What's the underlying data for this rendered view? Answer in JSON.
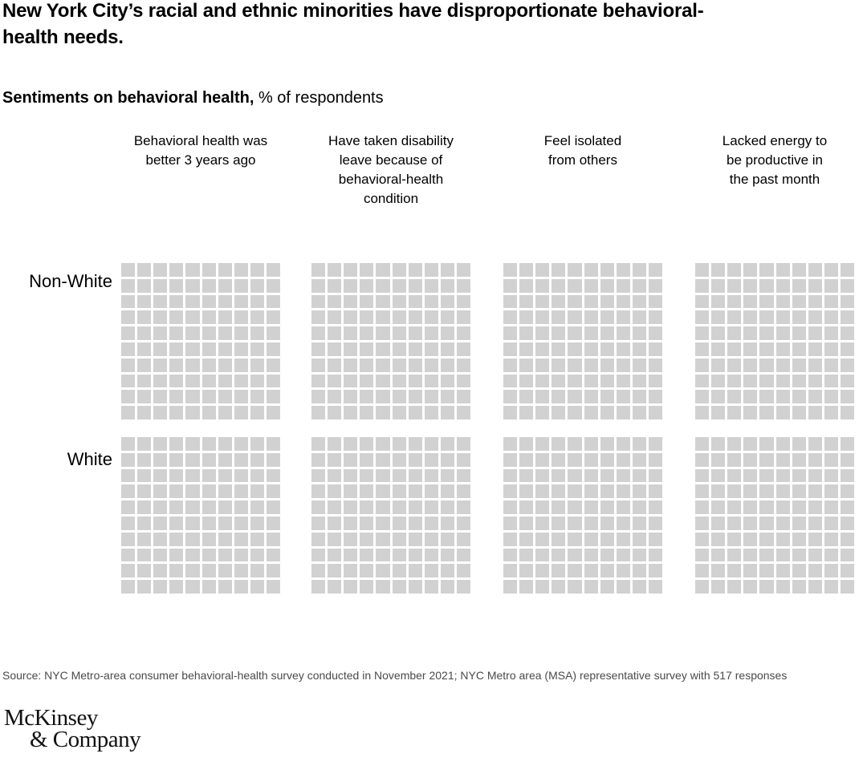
{
  "title": "New York City’s racial and ethnic minorities have disproportionate behavioral-\nhealth needs.",
  "subtitle": {
    "bold": "Sentiments on behavioral health,",
    "regular": " % of respondents"
  },
  "chart_data": {
    "type": "waffle",
    "title": "Sentiments on behavioral health, % of respondents",
    "rows": [
      "Non-White",
      "White"
    ],
    "categories": [
      "Behavioral health was better 3 years ago",
      "Have taken disability leave because of behavioral-health condition",
      "Feel isolated from others",
      "Lacked energy to be productive in the past month"
    ],
    "column_headers_display": [
      "Behavioral health was\nbetter 3 years ago",
      "Have taken disability\nleave because of\nbehavioral-health\ncondition",
      "Feel isolated\nfrom others",
      "Lacked energy to\nbe productive in\nthe past month"
    ],
    "grid": {
      "columns": 10,
      "rows": 10,
      "squares_per_panel": 100
    },
    "panel_count": 8,
    "square_color": "#d1d1d1",
    "highlighted_values": null,
    "note": "All 100 squares in each of the 8 panels are rendered in uniform light gray; no filled/highlighted segments or data values are displayed in the screenshot"
  },
  "source": "Source: NYC Metro-area consumer behavioral-health survey conducted in November 2021; NYC Metro area (MSA) representative survey with 517 responses",
  "logo": {
    "line1": "McKinsey",
    "line2": "& Company"
  },
  "colors": {
    "background": "#ffffff",
    "text": "#000000",
    "square": "#d1d1d1",
    "source_text": "#4a4a4a"
  }
}
